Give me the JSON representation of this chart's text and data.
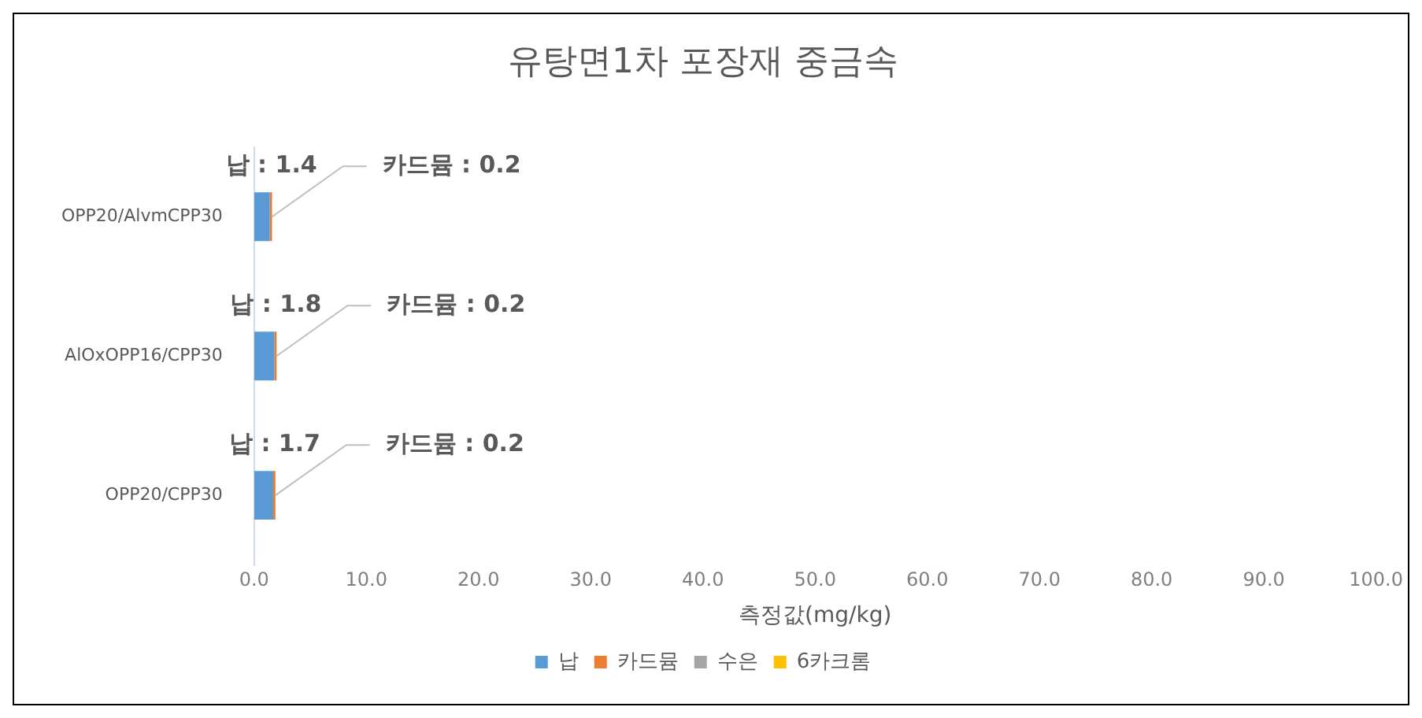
{
  "chart_data": {
    "type": "bar",
    "orientation": "horizontal",
    "stacked": true,
    "title": "유탕면1차 포장재 중금속",
    "xlabel": "측정값(mg/kg)",
    "categories": [
      "OPP20/AlvmCPP30",
      "AlOxOPP16/CPP30",
      "OPP20/CPP30"
    ],
    "series": [
      {
        "name": "납",
        "color": "#5b9bd5",
        "values": [
          1.4,
          1.8,
          1.7
        ],
        "value_labels": [
          "납 : 1.4",
          "납 : 1.8",
          "납 : 1.7"
        ]
      },
      {
        "name": "카드뮴",
        "color": "#ed7d31",
        "values": [
          0.2,
          0.2,
          0.2
        ],
        "value_labels": [
          "카드뮴 : 0.2",
          "카드뮴 : 0.2",
          "카드뮴 : 0.2"
        ]
      },
      {
        "name": "수은",
        "color": "#a5a5a5",
        "values": [
          null,
          null,
          null
        ]
      },
      {
        "name": "6카크롬",
        "color": "#ffc000",
        "values": [
          null,
          null,
          null
        ]
      }
    ],
    "xlim": [
      0,
      100
    ],
    "xticks": [
      {
        "value": 0,
        "label": "0.0"
      },
      {
        "value": 10,
        "label": "10.0"
      },
      {
        "value": 20,
        "label": "20.0"
      },
      {
        "value": 30,
        "label": "30.0"
      },
      {
        "value": 40,
        "label": "40.0"
      },
      {
        "value": 50,
        "label": "50.0"
      },
      {
        "value": 60,
        "label": "60.0"
      },
      {
        "value": 70,
        "label": "70.0"
      },
      {
        "value": 80,
        "label": "80.0"
      },
      {
        "value": 90,
        "label": "90.0"
      },
      {
        "value": 100,
        "label": "100.0"
      }
    ],
    "grid": false,
    "legend": "bottom"
  }
}
